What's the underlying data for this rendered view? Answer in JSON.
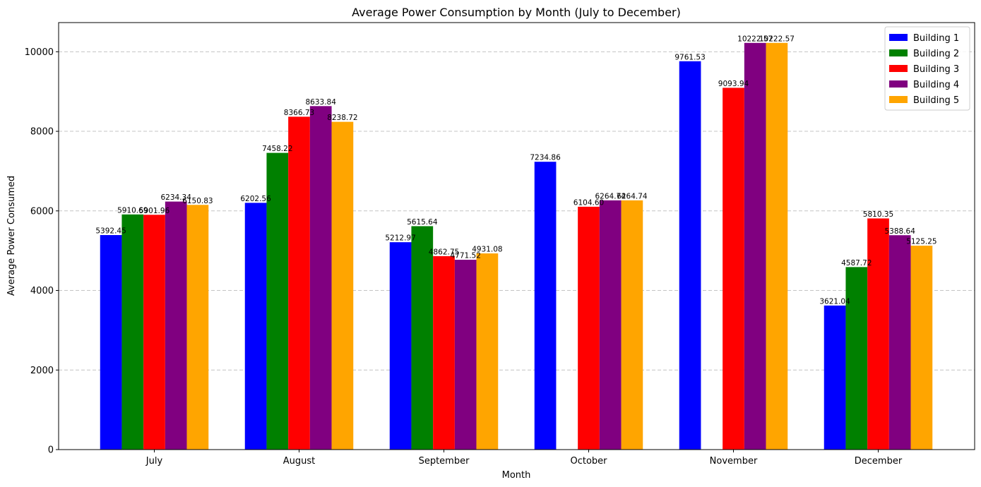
{
  "chart_data": {
    "type": "bar",
    "title": "Average Power Consumption by Month (July to December)",
    "xlabel": "Month",
    "ylabel": "Average Power Consumed",
    "categories": [
      "July",
      "August",
      "September",
      "October",
      "November",
      "December"
    ],
    "ylim": [
      0,
      10733
    ],
    "yticks": [
      0,
      2000,
      4000,
      6000,
      8000,
      10000
    ],
    "grid": "y-dashed",
    "legend_position": "top-right",
    "series": [
      {
        "name": "Building 1",
        "color": "#0000ff",
        "values": [
          5392.45,
          6202.56,
          5212.97,
          7234.86,
          9761.53,
          3621.04
        ],
        "labels": [
          "5392.45",
          "6202.56",
          "5212.97",
          "7234.86",
          "9761.53",
          "3621.04"
        ]
      },
      {
        "name": "Building 2",
        "color": "#008000",
        "values": [
          5910.69,
          7458.22,
          5615.64,
          null,
          null,
          4587.72
        ],
        "labels": [
          "5910.69",
          "7458.22",
          "5615.64",
          "",
          "",
          "4587.72"
        ]
      },
      {
        "name": "Building 3",
        "color": "#ff0000",
        "values": [
          5901.96,
          8366.73,
          4862.75,
          6104.6,
          9093.94,
          5810.35
        ],
        "labels": [
          "5901.96",
          "8366.73",
          "4862.75",
          "6104.60",
          "9093.94",
          "5810.35"
        ]
      },
      {
        "name": "Building 4",
        "color": "#800080",
        "values": [
          6234.34,
          8633.84,
          4771.52,
          6264.74,
          10222.57,
          5388.64
        ],
        "labels": [
          "6234.34",
          "8633.84",
          "4771.52",
          "6264.74",
          "10222.57",
          "5388.64"
        ]
      },
      {
        "name": "Building 5",
        "color": "#ffa500",
        "values": [
          6150.83,
          8238.72,
          4931.08,
          6264.74,
          10222.57,
          5125.25
        ],
        "labels": [
          "6150.83",
          "8238.72",
          "4931.08",
          "6264.74",
          "10222.57",
          "5125.25"
        ]
      }
    ]
  }
}
